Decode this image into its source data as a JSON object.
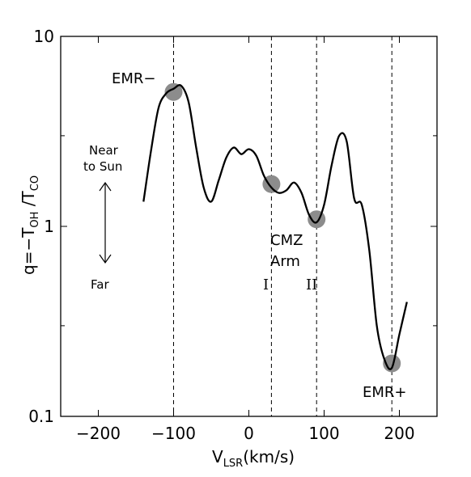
{
  "chart_data": {
    "type": "line",
    "xlabel": {
      "main": "V",
      "sub": "LSR",
      "unit": "(km/s)"
    },
    "ylabel": {
      "q": "q=−T",
      "sub1": "OH",
      "mid": " /T",
      "sub2": "CO"
    },
    "xlim": [
      -250,
      250
    ],
    "ylim": [
      0.1,
      10
    ],
    "yscale": "log",
    "grid": false,
    "xticks": [
      -200,
      -100,
      0,
      100,
      200
    ],
    "xticklabels": [
      "−200",
      "−100",
      "0",
      "100",
      "200"
    ],
    "yticks_major": [
      0.1,
      1,
      10
    ],
    "yticklabels": [
      "0.1",
      "1",
      "10"
    ],
    "series": [
      {
        "x": [
          -140,
          -130,
          -120,
          -110,
          -100,
          -90,
          -80,
          -70,
          -60,
          -50,
          -40,
          -30,
          -20,
          -10,
          0,
          10,
          20,
          30,
          40,
          50,
          60,
          70,
          80,
          90,
          100,
          110,
          120,
          130,
          140,
          150,
          160,
          170,
          180,
          190,
          200,
          210
        ],
        "y": [
          1.35,
          2.5,
          4.2,
          5.0,
          5.3,
          5.5,
          4.5,
          2.6,
          1.6,
          1.35,
          1.75,
          2.3,
          2.6,
          2.4,
          2.55,
          2.35,
          1.85,
          1.6,
          1.5,
          1.55,
          1.7,
          1.5,
          1.15,
          1.05,
          1.3,
          2.1,
          3.0,
          2.8,
          1.4,
          1.3,
          0.75,
          0.3,
          0.2,
          0.18,
          0.27,
          0.4
        ]
      }
    ],
    "vlines": [
      -100,
      30,
      90,
      190
    ],
    "markers": [
      {
        "x": -100,
        "y": 5.1
      },
      {
        "x": 30,
        "y": 1.67
      },
      {
        "x": 90,
        "y": 1.09
      },
      {
        "x": 190,
        "y": 0.19
      }
    ],
    "annotations": {
      "emr_minus": "EMR−",
      "emr_plus": "EMR+",
      "cmz_line1": "CMZ",
      "cmz_line2": "Arm",
      "arm_i": "I",
      "arm_ii": "II",
      "near_line1": "Near",
      "near_line2": "to Sun",
      "far": "Far"
    }
  }
}
